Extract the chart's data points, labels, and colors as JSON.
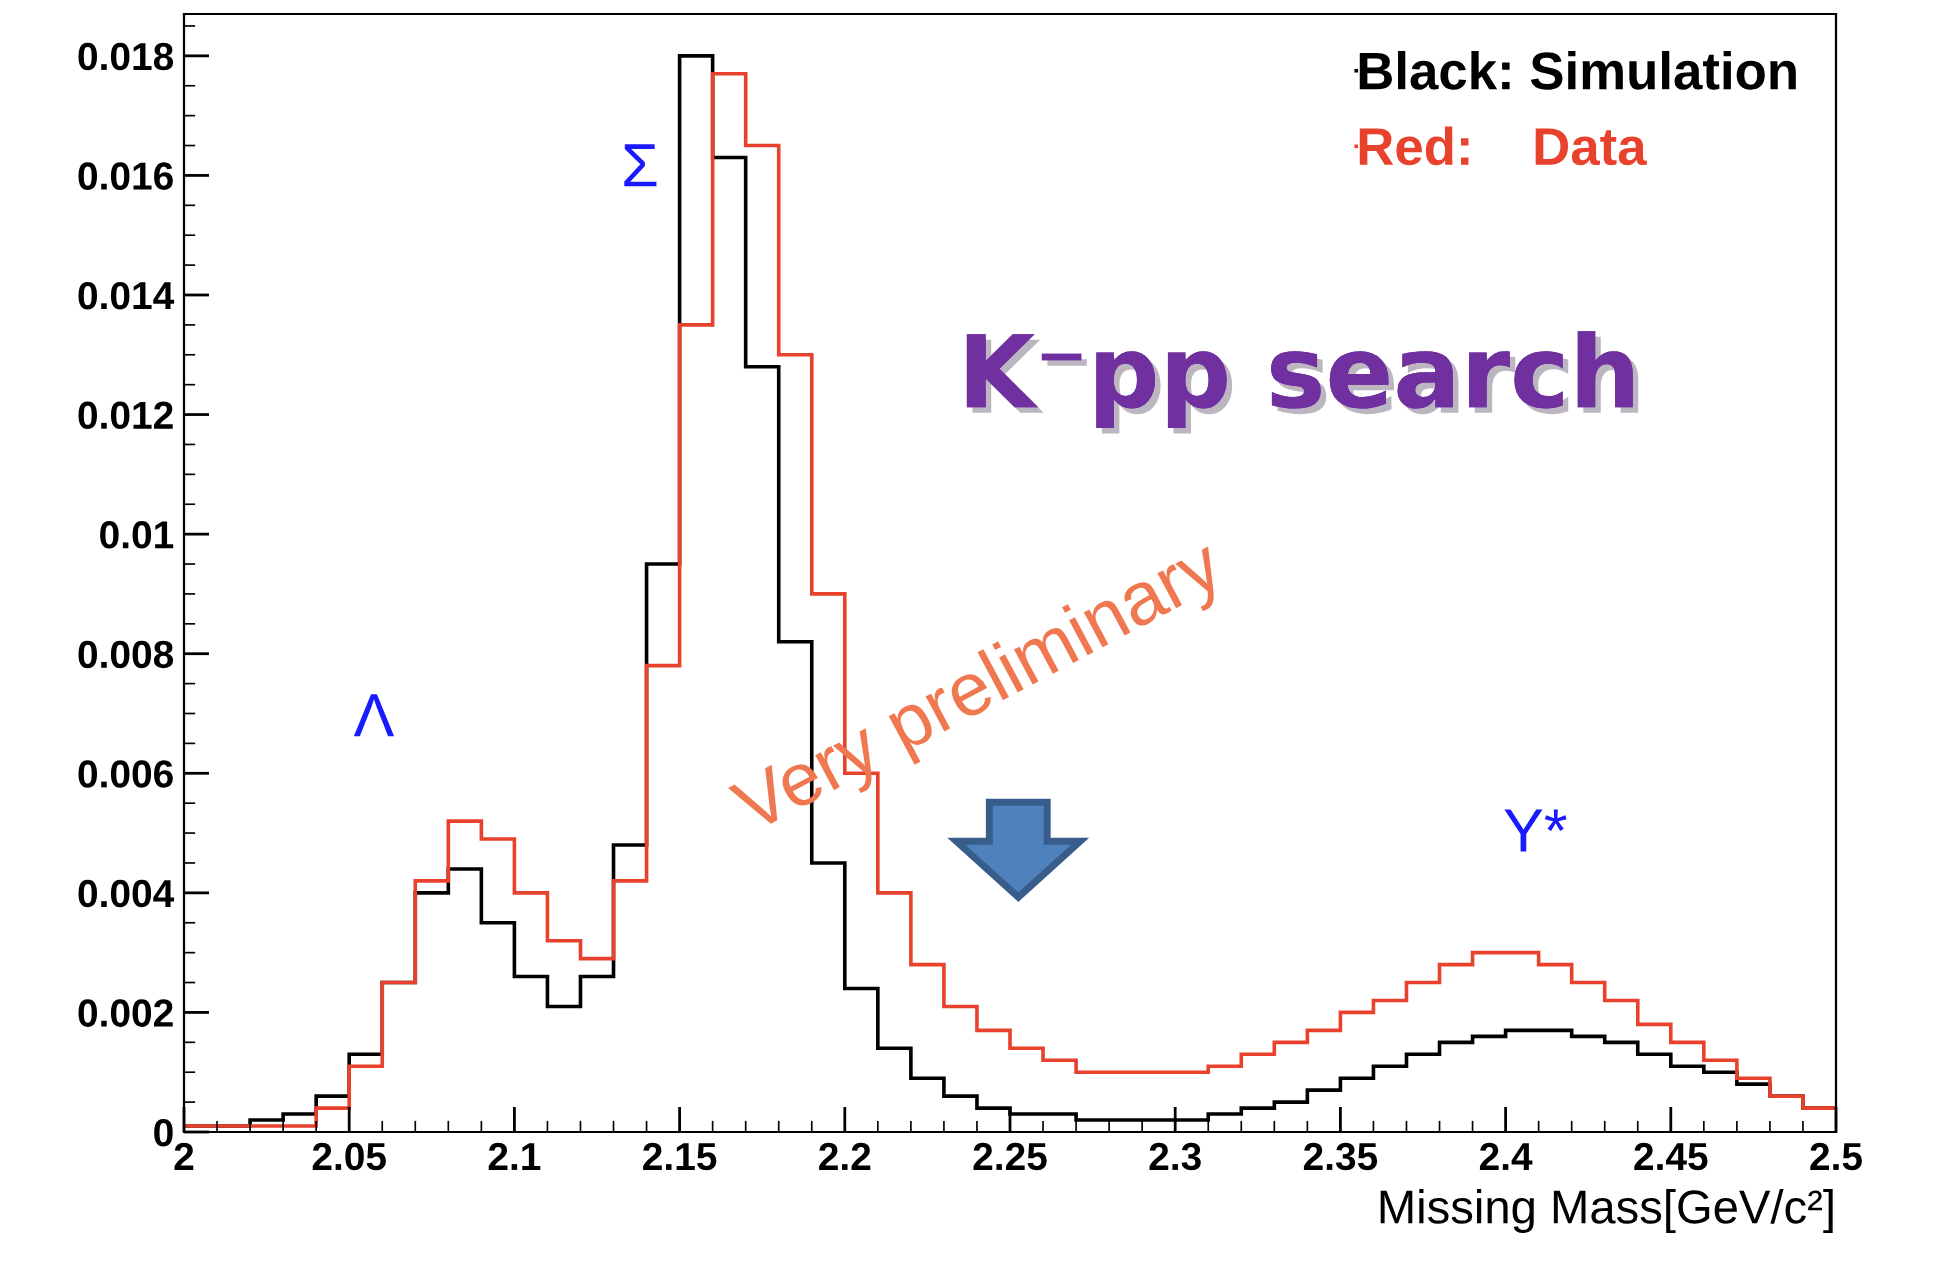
{
  "chart_data": {
    "type": "histogram",
    "xlabel": "Missing Mass[GeV/c²]",
    "bins": [
      2.0,
      2.01,
      2.02,
      2.03,
      2.04,
      2.05,
      2.06,
      2.07,
      2.08,
      2.09,
      2.1,
      2.11,
      2.12,
      2.13,
      2.14,
      2.15,
      2.16,
      2.17,
      2.18,
      2.19,
      2.2,
      2.21,
      2.22,
      2.23,
      2.24,
      2.25,
      2.26,
      2.27,
      2.28,
      2.29,
      2.3,
      2.31,
      2.32,
      2.33,
      2.34,
      2.35,
      2.36,
      2.37,
      2.38,
      2.39,
      2.4,
      2.41,
      2.42,
      2.43,
      2.44,
      2.45,
      2.46,
      2.47,
      2.48,
      2.49,
      2.5
    ],
    "series": [
      {
        "name": "Black: Simulation",
        "color": "#000000",
        "values": [
          0.0001,
          0.0001,
          0.0002,
          0.0003,
          0.0006,
          0.0013,
          0.0025,
          0.004,
          0.0044,
          0.0035,
          0.0026,
          0.0021,
          0.0026,
          0.0048,
          0.0095,
          0.018,
          0.0163,
          0.0128,
          0.0082,
          0.0045,
          0.0024,
          0.0014,
          0.0009,
          0.0006,
          0.0004,
          0.0003,
          0.0003,
          0.0002,
          0.0002,
          0.0002,
          0.0002,
          0.0003,
          0.0004,
          0.0005,
          0.0007,
          0.0009,
          0.0011,
          0.0013,
          0.0015,
          0.0016,
          0.0017,
          0.0017,
          0.0016,
          0.0015,
          0.0013,
          0.0011,
          0.001,
          0.0008,
          0.0006,
          0.0004
        ]
      },
      {
        "name": "Red:    Data",
        "color": "#e8412c",
        "values": [
          0.0001,
          0.0001,
          0.0001,
          0.0001,
          0.0004,
          0.0011,
          0.0025,
          0.0042,
          0.0052,
          0.0049,
          0.004,
          0.0032,
          0.0029,
          0.0042,
          0.0078,
          0.0135,
          0.0177,
          0.0165,
          0.013,
          0.009,
          0.006,
          0.004,
          0.0028,
          0.0021,
          0.0017,
          0.0014,
          0.0012,
          0.001,
          0.001,
          0.001,
          0.001,
          0.0011,
          0.0013,
          0.0015,
          0.0017,
          0.002,
          0.0022,
          0.0025,
          0.0028,
          0.003,
          0.003,
          0.0028,
          0.0025,
          0.0022,
          0.0018,
          0.0015,
          0.0012,
          0.0009,
          0.0006,
          0.0004
        ]
      }
    ],
    "xlim": [
      2,
      2.5
    ],
    "xticks": [
      2,
      2.05,
      2.1,
      2.15,
      2.2,
      2.25,
      2.3,
      2.35,
      2.4,
      2.45,
      2.5
    ],
    "ylim": [
      0,
      0.0187
    ],
    "yticks": [
      0,
      0.002,
      0.004,
      0.006,
      0.008,
      0.01,
      0.012,
      0.014,
      0.016,
      0.018
    ],
    "legend": "top right",
    "grid": false,
    "annotations": [
      "Σ",
      "Λ",
      "Y*",
      "K⁻pp search",
      "Very preliminary"
    ]
  }
}
